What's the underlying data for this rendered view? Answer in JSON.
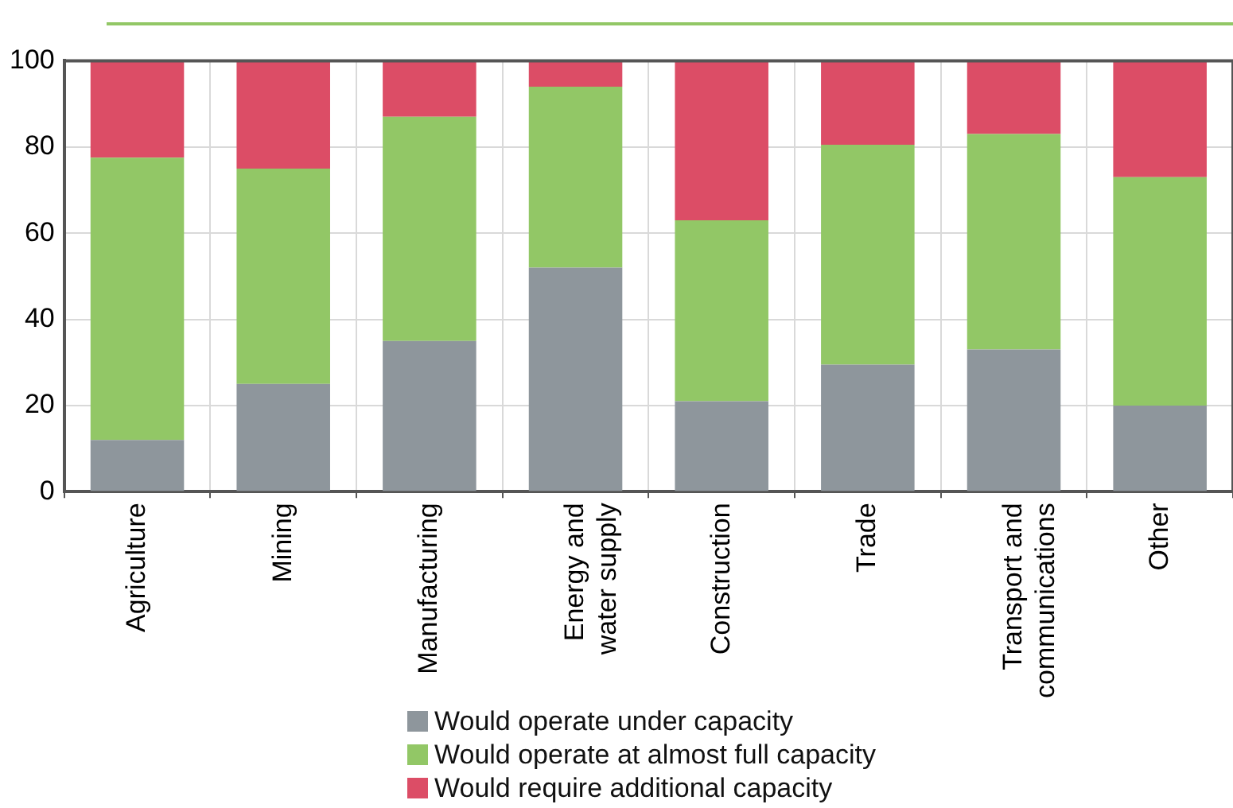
{
  "chart_data": {
    "type": "bar",
    "stacked": true,
    "categories": [
      "Agriculture",
      "Mining",
      "Manufacturing",
      "Energy and water supply",
      "Construction",
      "Trade",
      "Transport and communications",
      "Other"
    ],
    "series": [
      {
        "name": "Would operate under capacity",
        "color": "#8e969c",
        "values": [
          12,
          25,
          35,
          52,
          21,
          29.5,
          33,
          20
        ]
      },
      {
        "name": "Would operate at almost full capacity",
        "color": "#92c766",
        "values": [
          65.5,
          50,
          52,
          42,
          42,
          51,
          50,
          53
        ]
      },
      {
        "name": "Would require additional capacity",
        "color": "#dc4d66",
        "values": [
          22.5,
          25,
          13,
          6,
          37,
          19.5,
          17,
          27
        ]
      }
    ],
    "ylim": [
      0,
      100
    ],
    "yticks": [
      0,
      20,
      40,
      60,
      80,
      100
    ],
    "grid": true,
    "legend": "bottom"
  }
}
